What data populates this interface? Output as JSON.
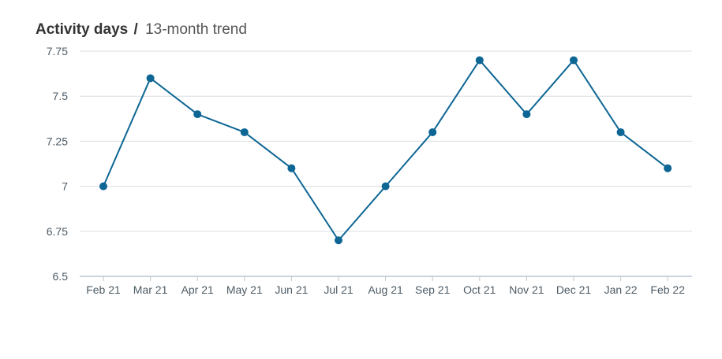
{
  "header": {
    "title": "Activity days",
    "separator": "/",
    "subtitle": "13-month trend"
  },
  "chart_data": {
    "type": "line",
    "categories": [
      "Feb 21",
      "Mar 21",
      "Apr 21",
      "May 21",
      "Jun 21",
      "Jul 21",
      "Aug 21",
      "Sep 21",
      "Oct 21",
      "Nov 21",
      "Dec 21",
      "Jan 22",
      "Feb 22"
    ],
    "values": [
      7.0,
      7.6,
      7.4,
      7.3,
      7.1,
      6.7,
      7.0,
      7.3,
      7.7,
      7.4,
      7.7,
      7.3,
      7.1
    ],
    "yticks": [
      6.5,
      6.75,
      7,
      7.25,
      7.5,
      7.75
    ],
    "ytick_labels": [
      "6.5",
      "6.75",
      "7",
      "7.25",
      "7.5",
      "7.75"
    ],
    "ylim": [
      6.5,
      7.75
    ],
    "grid": true,
    "legend": "none",
    "line_color": "#0d6694",
    "grid_color": "#d9dde0",
    "axis_color": "#b9c6d2"
  }
}
